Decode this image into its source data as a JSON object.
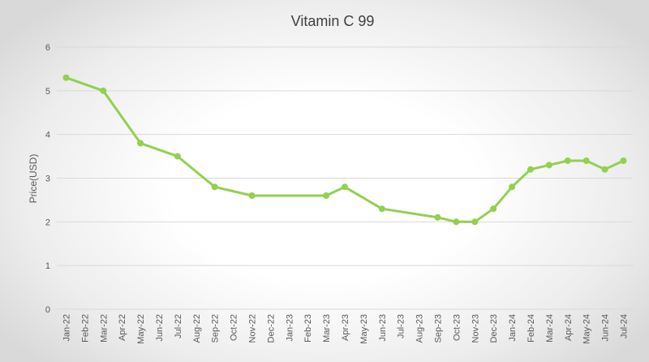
{
  "chart_data": {
    "type": "line",
    "title": "Vitamin C 99",
    "xlabel": "",
    "ylabel": "Price(USD)",
    "ylim": [
      0,
      6
    ],
    "yticks": [
      0,
      1,
      2,
      3,
      4,
      5,
      6
    ],
    "grid": true,
    "categories": [
      "Jan-22",
      "Feb-22",
      "Mar-22",
      "Apr-22",
      "May-22",
      "Jun-22",
      "Jul-22",
      "Aug-22",
      "Sep-22",
      "Oct-22",
      "Nov-22",
      "Dec-22",
      "Jan-23",
      "Feb-23",
      "Mar-23",
      "Apr-23",
      "May-23",
      "Jun-23",
      "Jul-23",
      "Aug-23",
      "Sep-23",
      "Oct-23",
      "Nov-23",
      "Dec-23",
      "Jan-24",
      "Feb-24",
      "Mar-24",
      "Apr-24",
      "May-24",
      "Jun-24",
      "Jul-24"
    ],
    "series": [
      {
        "name": "Vitamin C 99",
        "color": "#92d050",
        "values": [
          5.3,
          null,
          5.0,
          null,
          3.8,
          null,
          3.5,
          null,
          2.8,
          null,
          2.6,
          null,
          null,
          null,
          2.6,
          2.8,
          null,
          2.3,
          null,
          null,
          2.1,
          2.0,
          2.0,
          2.3,
          2.8,
          3.2,
          3.3,
          3.4,
          3.4,
          3.2,
          3.4
        ]
      }
    ]
  }
}
